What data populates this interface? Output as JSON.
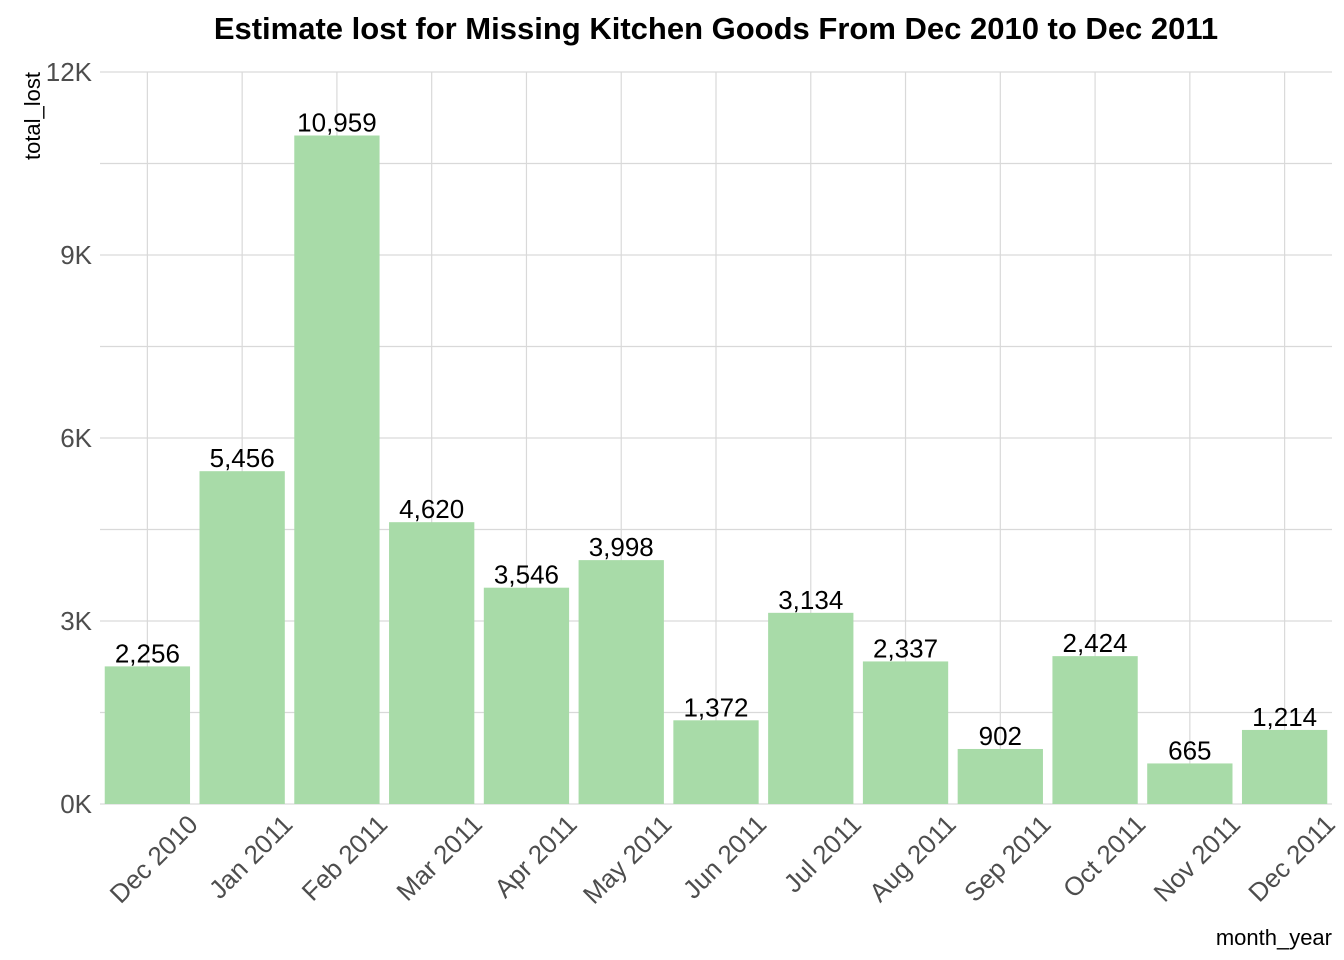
{
  "chart_data": {
    "type": "bar",
    "title": "Estimate lost for Missing Kitchen Goods From Dec 2010 to Dec 2011",
    "xlabel": "month_year",
    "ylabel": "total_lost",
    "categories": [
      "Dec 2010",
      "Jan 2011",
      "Feb 2011",
      "Mar 2011",
      "Apr 2011",
      "May 2011",
      "Jun 2011",
      "Jul 2011",
      "Aug 2011",
      "Sep 2011",
      "Oct 2011",
      "Nov 2011",
      "Dec 2011"
    ],
    "values": [
      2256,
      5456,
      10959,
      4620,
      3546,
      3998,
      1372,
      3134,
      2337,
      902,
      2424,
      665,
      1214
    ],
    "value_labels": [
      "2,256",
      "5,456",
      "10,959",
      "4,620",
      "3,546",
      "3,998",
      "1,372",
      "3,134",
      "2,337",
      "902",
      "2,424",
      "665",
      "1,214"
    ],
    "ylim": [
      0,
      12000
    ],
    "yticks": [
      0,
      3000,
      6000,
      9000,
      12000
    ],
    "ytick_labels": [
      "0K",
      "3K",
      "6K",
      "9K",
      "12K"
    ],
    "grid": true,
    "legend": "none",
    "bar_color": "#a8dba8"
  }
}
